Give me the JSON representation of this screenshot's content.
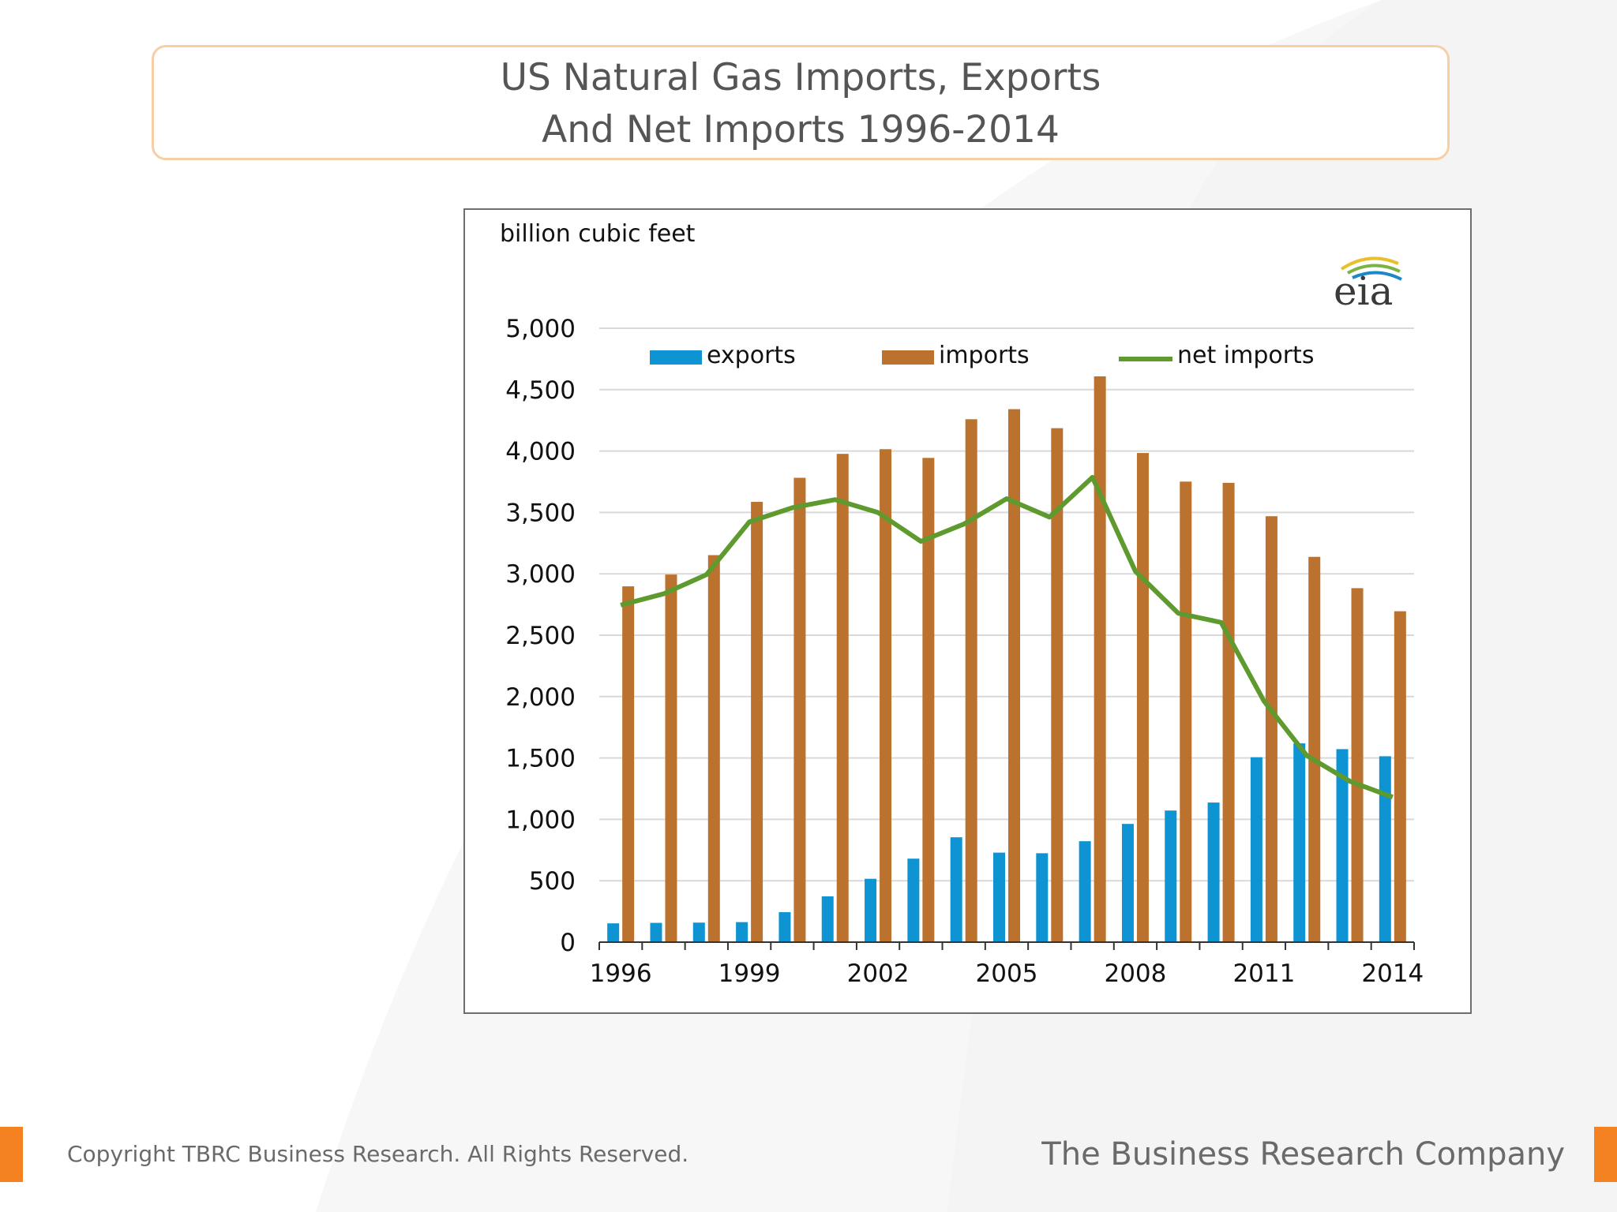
{
  "slide": {
    "title_line1": "US Natural Gas Imports, Exports",
    "title_line2": "And Net Imports 1996-2014",
    "copyright": "Copyright TBRC Business Research. All Rights Reserved.",
    "brand": "The Business Research Company",
    "accent_color": "#f58220"
  },
  "chart_data": {
    "type": "bar",
    "ylabel": "billion cubic feet",
    "logo_text": "eia",
    "ylim": [
      0,
      5000
    ],
    "yticks": [
      0,
      500,
      1000,
      1500,
      2000,
      2500,
      3000,
      3500,
      4000,
      4500,
      5000
    ],
    "ytick_labels": [
      "0",
      "500",
      "1,000",
      "1,500",
      "2,000",
      "2,500",
      "3,000",
      "3,500",
      "4,000",
      "4,500",
      "5,000"
    ],
    "categories": [
      "1996",
      "1997",
      "1998",
      "1999",
      "2000",
      "2001",
      "2002",
      "2003",
      "2004",
      "2005",
      "2006",
      "2007",
      "2008",
      "2009",
      "2010",
      "2011",
      "2012",
      "2013",
      "2014"
    ],
    "xtick_labels": [
      "1996",
      "1999",
      "2002",
      "2005",
      "2008",
      "2011",
      "2014"
    ],
    "grid": true,
    "legend_position": "top",
    "series": [
      {
        "name": "exports",
        "kind": "bar",
        "color": "#0e94d2",
        "values": [
          153,
          157,
          159,
          163,
          244,
          373,
          516,
          680,
          854,
          729,
          724,
          822,
          963,
          1072,
          1137,
          1506,
          1619,
          1572,
          1514
        ]
      },
      {
        "name": "imports",
        "kind": "bar",
        "color": "#bb722f",
        "values": [
          2898,
          2994,
          3152,
          3586,
          3782,
          3977,
          4015,
          3944,
          4259,
          4341,
          4186,
          4608,
          3984,
          3751,
          3741,
          3469,
          3138,
          2883,
          2695
        ]
      },
      {
        "name": "net imports",
        "kind": "line",
        "color": "#5e9a2e",
        "values": [
          2745,
          2837,
          2993,
          3423,
          3538,
          3604,
          3499,
          3264,
          3405,
          3612,
          3462,
          3786,
          3021,
          2679,
          2604,
          1963,
          1519,
          1311,
          1181
        ]
      }
    ]
  }
}
